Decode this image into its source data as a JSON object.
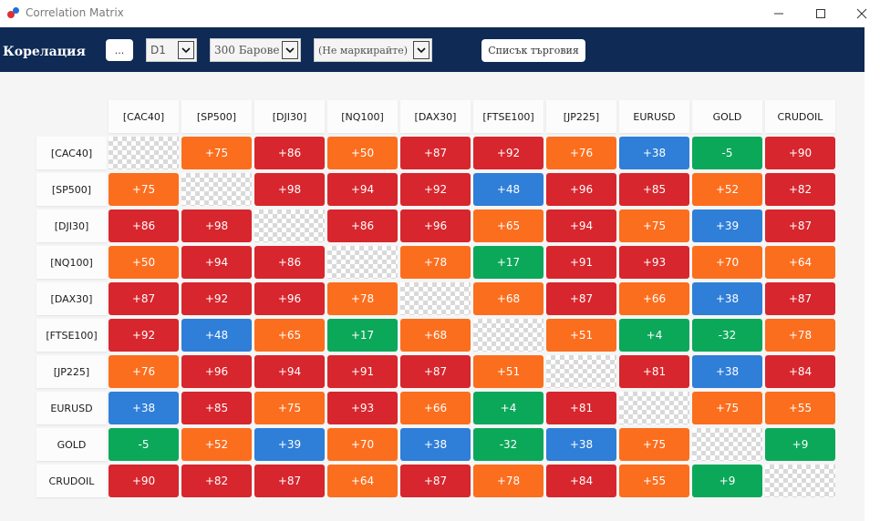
{
  "window": {
    "title": "Correlation Matrix"
  },
  "toolbar": {
    "heading": "Корелация",
    "dots_button": "...",
    "timeframe": "D1",
    "bars": "300 Барове",
    "mark": "(Не маркирайте)",
    "trade_list_button": "Списък търговия"
  },
  "symbols": [
    "[CAC40]",
    "[SP500]",
    "[DJI30]",
    "[NQ100]",
    "[DAX30]",
    "[FTSE100]",
    "[JP225]",
    "EURUSD",
    "GOLD",
    "CRUDOIL"
  ],
  "matrix": [
    [
      null,
      "+75",
      "+86",
      "+50",
      "+87",
      "+92",
      "+76",
      "+38",
      "-5",
      "+90"
    ],
    [
      "+75",
      null,
      "+98",
      "+94",
      "+92",
      "+48",
      "+96",
      "+85",
      "+52",
      "+82"
    ],
    [
      "+86",
      "+98",
      null,
      "+86",
      "+96",
      "+65",
      "+94",
      "+75",
      "+39",
      "+87"
    ],
    [
      "+50",
      "+94",
      "+86",
      null,
      "+78",
      "+17",
      "+91",
      "+93",
      "+70",
      "+64"
    ],
    [
      "+87",
      "+92",
      "+96",
      "+78",
      null,
      "+68",
      "+87",
      "+66",
      "+38",
      "+87"
    ],
    [
      "+92",
      "+48",
      "+65",
      "+17",
      "+68",
      null,
      "+51",
      "+4",
      "-32",
      "+78"
    ],
    [
      "+76",
      "+96",
      "+94",
      "+91",
      "+87",
      "+51",
      null,
      "+81",
      "+38",
      "+84"
    ],
    [
      "+38",
      "+85",
      "+75",
      "+93",
      "+66",
      "+4",
      "+81",
      null,
      "+75",
      "+55"
    ],
    [
      "-5",
      "+52",
      "+39",
      "+70",
      "+38",
      "-32",
      "+38",
      "+75",
      null,
      "+9"
    ],
    [
      "+90",
      "+82",
      "+87",
      "+64",
      "+87",
      "+78",
      "+84",
      "+55",
      "+9",
      null
    ]
  ],
  "colors": {
    "red": "#d7262d",
    "orange": "#fb6e1e",
    "blue": "#2f7ed8",
    "green": "#0ca85a",
    "toolbar": "#0e2a55"
  },
  "icons": {
    "logo": "app-logo-icon",
    "minimize": "minimize-icon",
    "maximize": "maximize-icon",
    "close": "close-icon",
    "dropdown": "chevron-down-icon"
  }
}
